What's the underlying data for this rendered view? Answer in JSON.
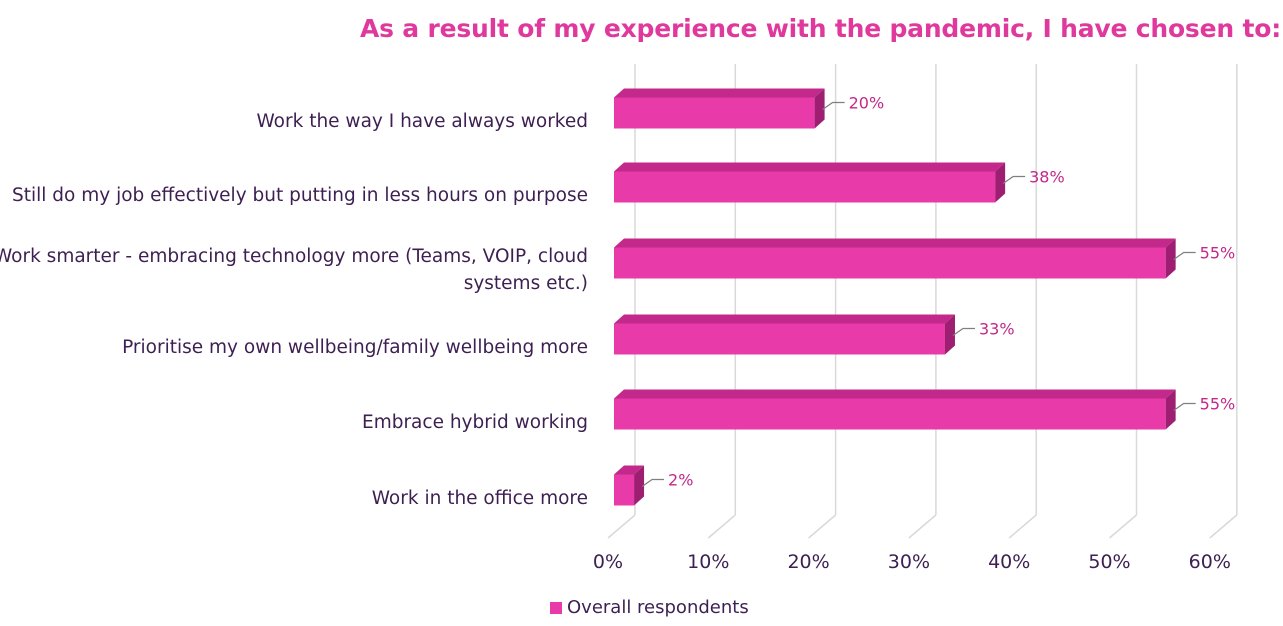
{
  "chart_data": {
    "type": "bar",
    "orientation": "horizontal",
    "style": "3d",
    "title": "As a result of my experience with the pandemic, I have chosen to:",
    "categories": [
      "Work the way I have always worked",
      "Still do my job effectively but putting in less hours on purpose",
      "Work smarter - embracing technology more (Teams, VOIP, cloud systems etc.)",
      "Prioritise my own wellbeing/family wellbeing more",
      "Embrace hybrid working",
      "Work in the office more"
    ],
    "series": [
      {
        "name": "Overall respondents",
        "values": [
          20,
          38,
          55,
          33,
          55,
          2
        ],
        "labels": [
          "20%",
          "38%",
          "55%",
          "33%",
          "55%",
          "2%"
        ]
      }
    ],
    "xlim": [
      0,
      60
    ],
    "xticks": [
      "0%",
      "10%",
      "20%",
      "30%",
      "40%",
      "50%",
      "60%"
    ],
    "grid": true,
    "legend_position": "bottom",
    "colors": {
      "bar_front": "#e83aa8",
      "bar_top": "#c2298a",
      "bar_side": "#9e1f72",
      "title": "#e0399d",
      "label": "#3d1f52",
      "data_label": "#c2298a",
      "grid": "#d9d9d9"
    }
  }
}
